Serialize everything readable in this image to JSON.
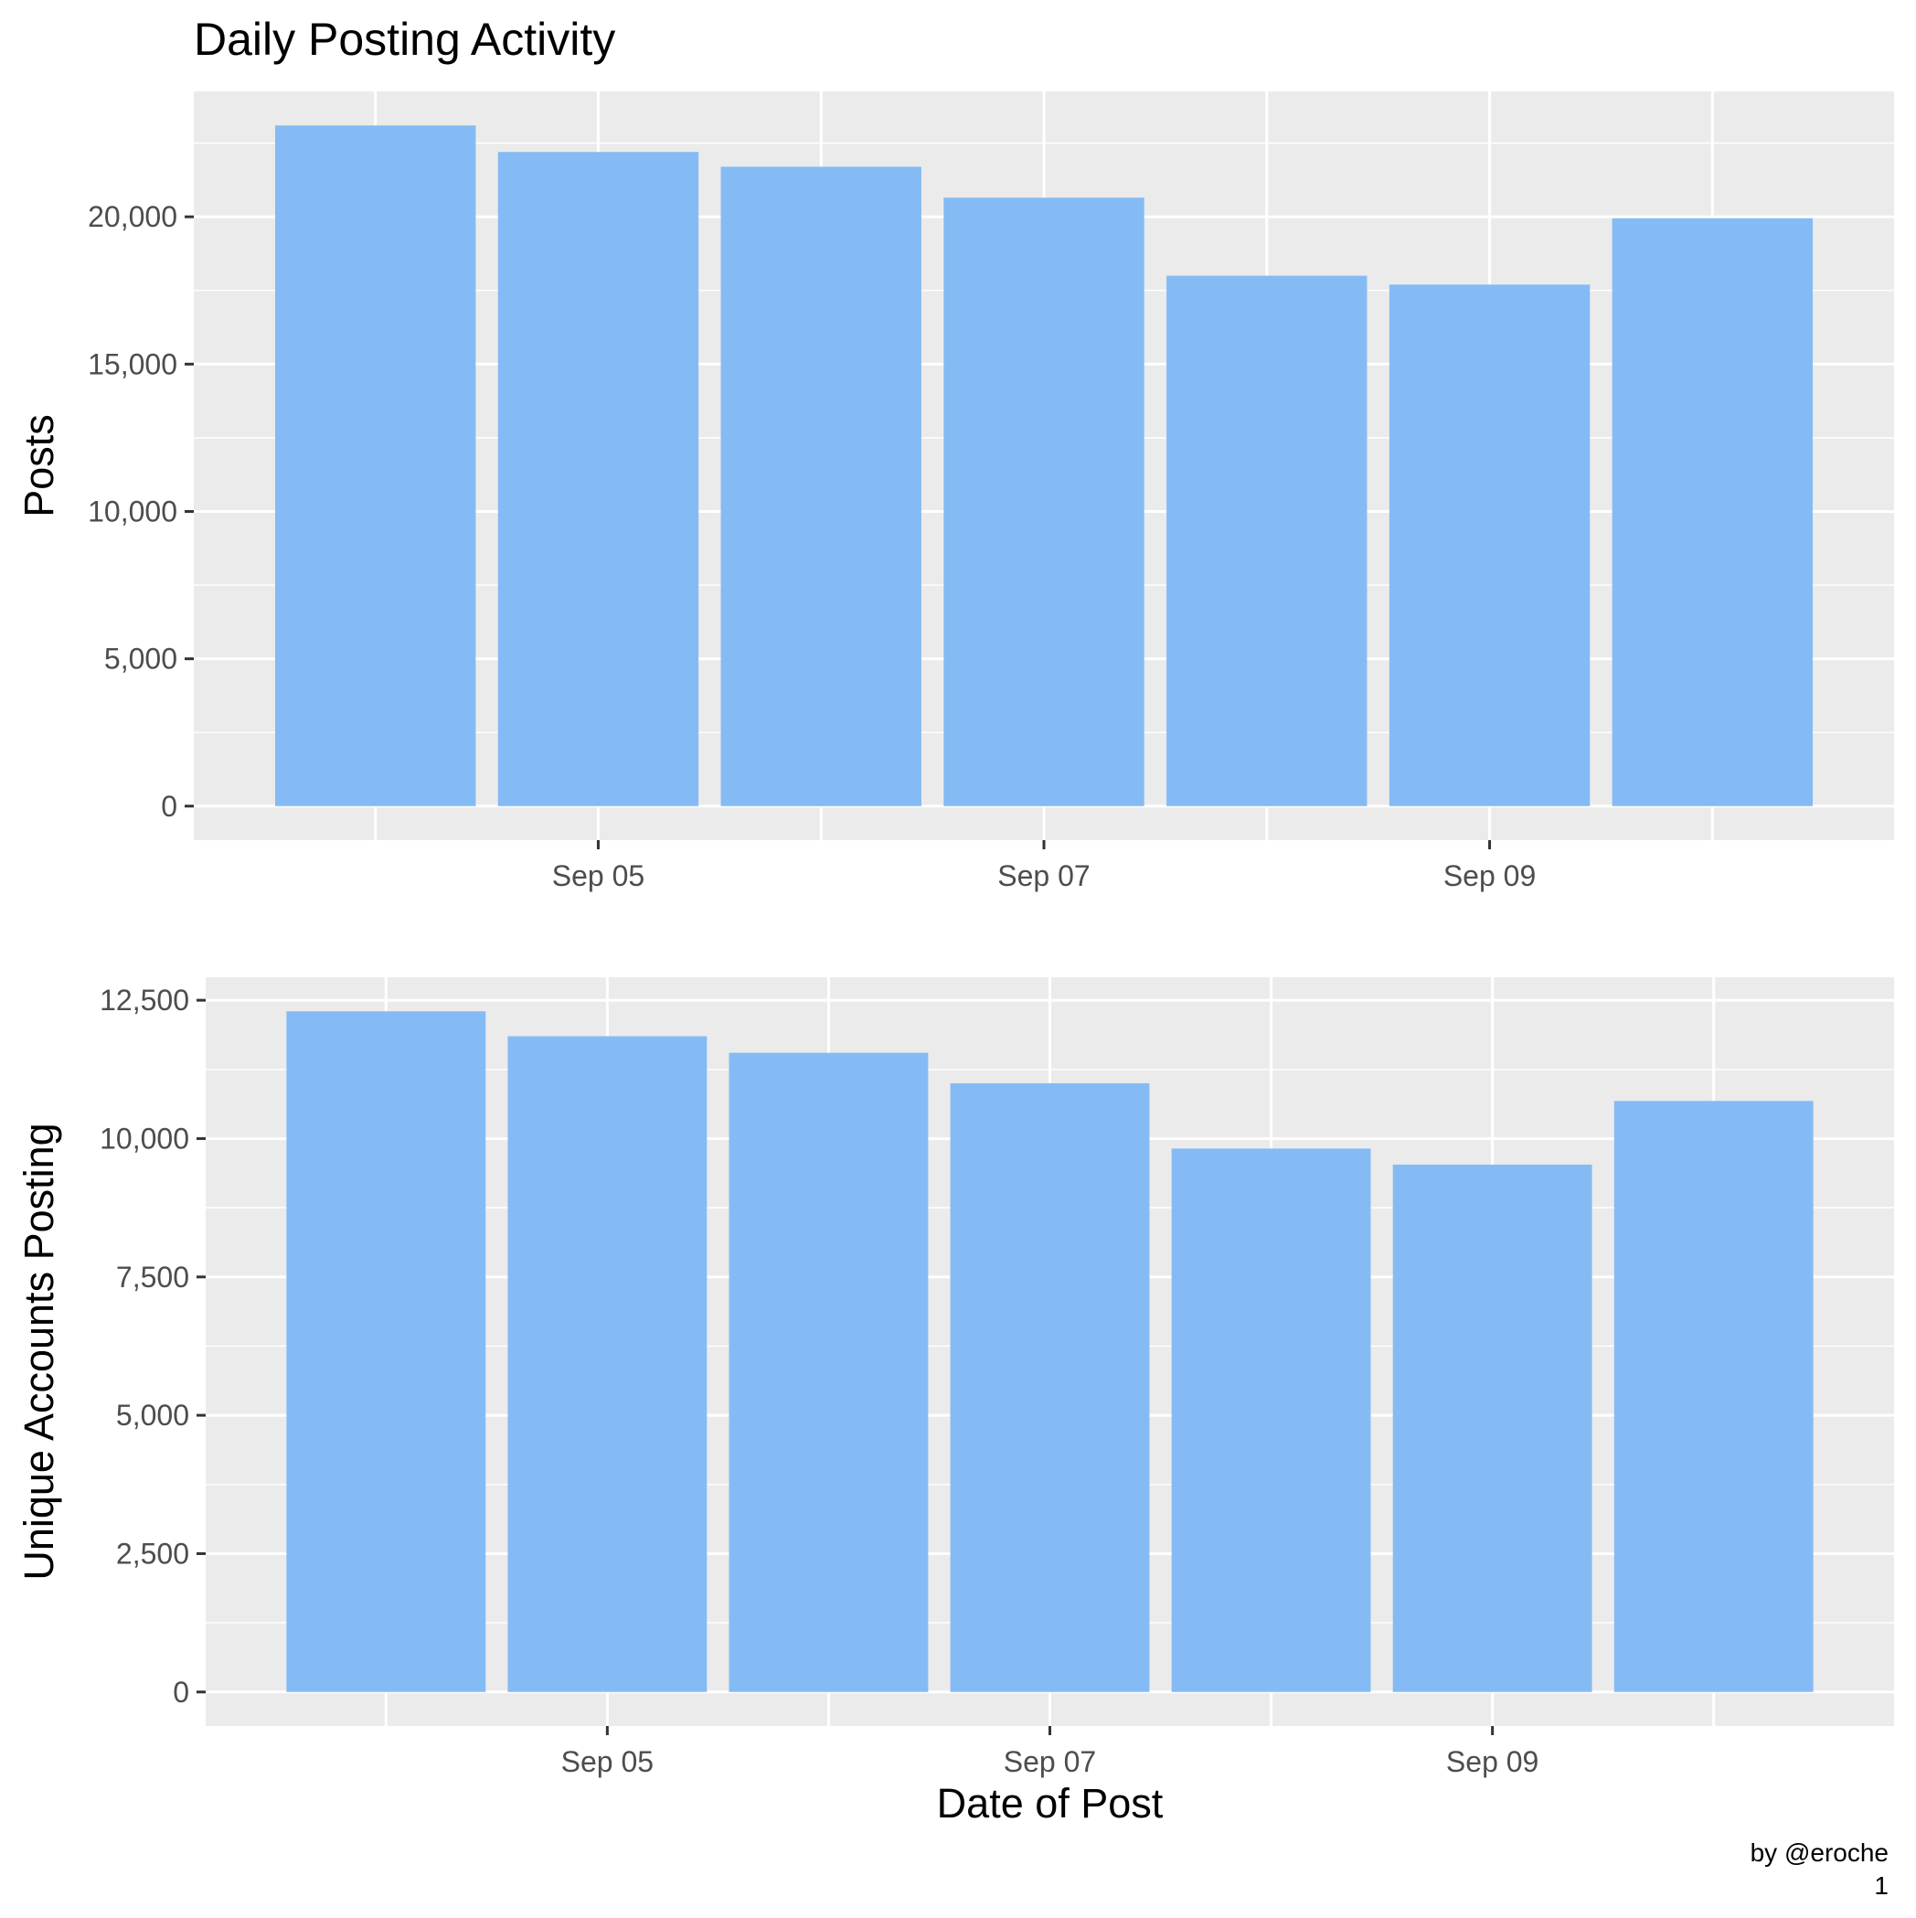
{
  "title": "Daily Posting Activity",
  "caption_lines": [
    "by @eroche",
    "1"
  ],
  "chart_data": [
    {
      "type": "bar",
      "title": "Daily Posting Activity",
      "xlabel": "",
      "ylabel": "Posts",
      "x": [
        "2017-09-04",
        "2017-09-05",
        "2017-09-06",
        "2017-09-07",
        "2017-09-08",
        "2017-09-09",
        "2017-09-10"
      ],
      "values": [
        23100,
        22200,
        21700,
        20650,
        18000,
        17700,
        19950
      ],
      "xticks": [
        "Sep 05",
        "Sep 07",
        "Sep 09"
      ],
      "yticks": [
        0,
        5000,
        10000,
        15000,
        20000
      ],
      "ytick_labels": [
        "0",
        "5,000",
        "10,000",
        "15,000",
        "20,000"
      ],
      "ylim": [
        -1155,
        24255
      ],
      "grid": true,
      "bar_color": "#85bbf4"
    },
    {
      "type": "bar",
      "xlabel": "Date of Post",
      "ylabel": "Unique Accounts Posting",
      "x": [
        "2017-09-04",
        "2017-09-05",
        "2017-09-06",
        "2017-09-07",
        "2017-09-08",
        "2017-09-09",
        "2017-09-10"
      ],
      "values": [
        12300,
        11850,
        11550,
        11000,
        9820,
        9530,
        10680
      ],
      "xticks": [
        "Sep 05",
        "Sep 07",
        "Sep 09"
      ],
      "yticks": [
        0,
        2500,
        5000,
        7500,
        10000,
        12500
      ],
      "ytick_labels": [
        "0",
        "2,500",
        "5,000",
        "7,500",
        "10,000",
        "12,500"
      ],
      "ylim": [
        -615,
        12915
      ],
      "grid": true,
      "bar_color": "#85bbf4"
    }
  ]
}
